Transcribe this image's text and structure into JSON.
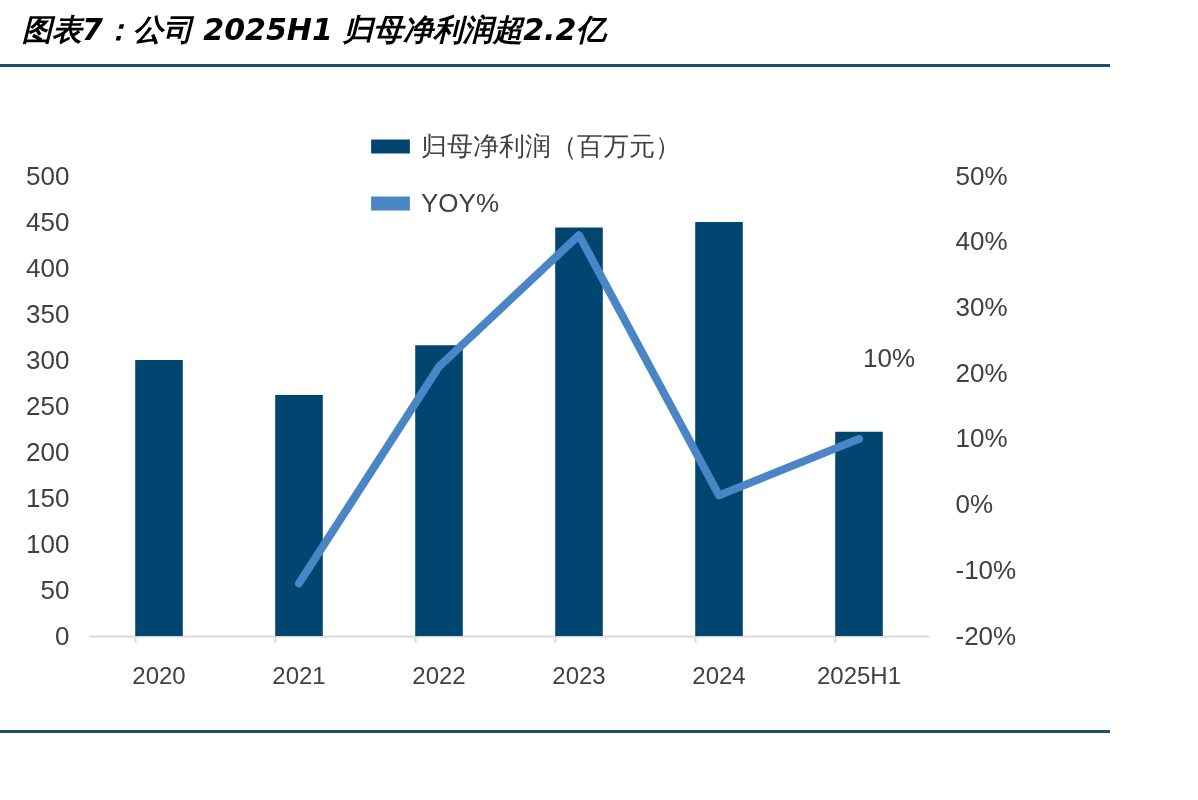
{
  "chart_data": {
    "type": "bar",
    "title": "图表7：公司 2025H1 归母净利润超2.2亿",
    "categories": [
      "2020",
      "2021",
      "2022",
      "2023",
      "2024",
      "2025H1"
    ],
    "series": [
      {
        "name": "归母净利润（百万元）",
        "color": "#004670",
        "values": [
          300,
          262,
          316,
          444,
          450,
          222
        ]
      },
      {
        "name": "YOY%",
        "type": "line",
        "axis": "y2",
        "color": "#4a86c5",
        "values": [
          null,
          -12,
          21,
          41,
          1.4,
          10
        ],
        "value_labels": [
          null,
          null,
          null,
          null,
          null,
          "10%"
        ]
      }
    ],
    "ylim": [
      0,
      500
    ],
    "yticks": [
      0,
      50,
      100,
      150,
      200,
      250,
      300,
      350,
      400,
      450,
      500
    ],
    "y2lim": [
      -20,
      50
    ],
    "y2ticks": [
      {
        "value": -20,
        "label": "-20%"
      },
      {
        "value": -10,
        "label": "-10%"
      },
      {
        "value": 0,
        "label": "0%"
      },
      {
        "value": 10,
        "label": "10%"
      },
      {
        "value": 20,
        "label": "20%"
      },
      {
        "value": 30,
        "label": "30%"
      },
      {
        "value": 40,
        "label": "40%"
      },
      {
        "value": 50,
        "label": "50%"
      }
    ],
    "legend": "top",
    "grid": false
  }
}
